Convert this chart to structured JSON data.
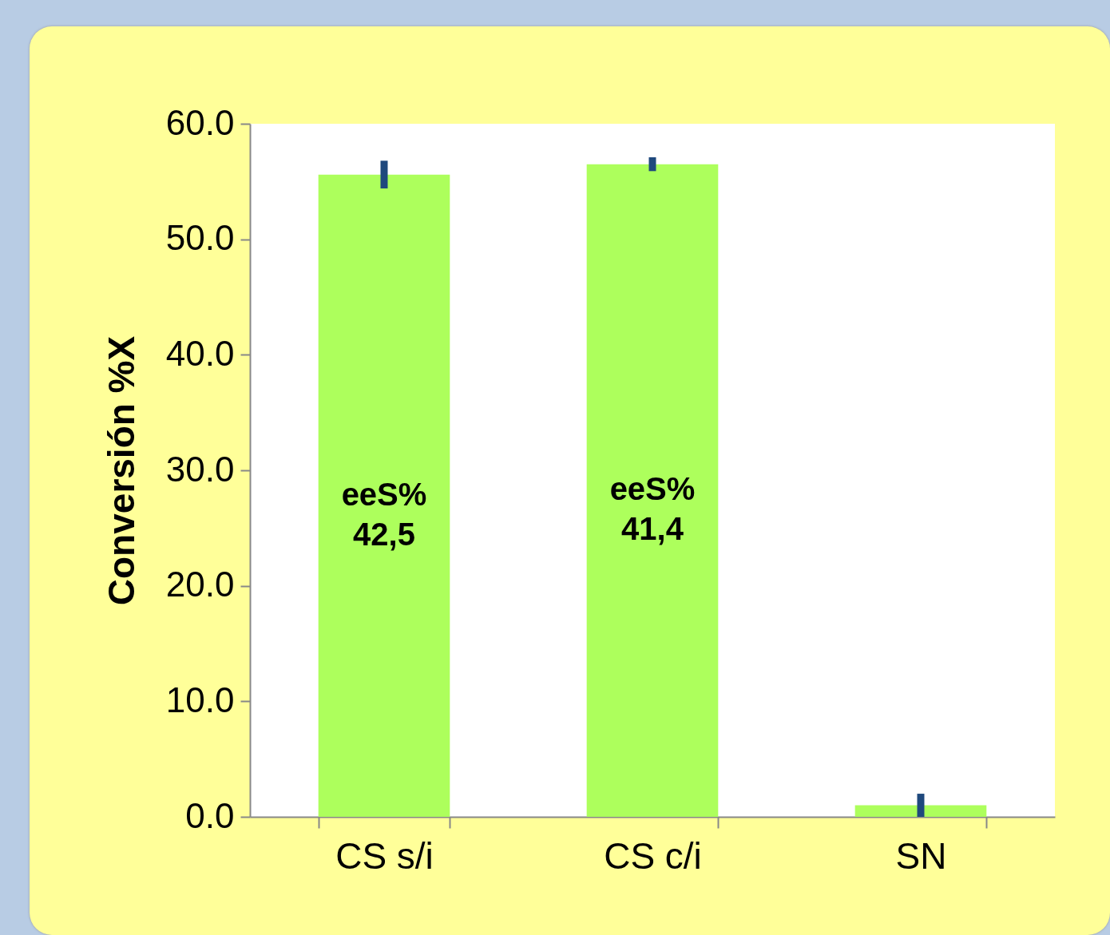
{
  "chart_data": {
    "type": "bar",
    "ylabel": "Conversión %X",
    "categories": [
      "CS s/i",
      "CS c/i",
      "SN"
    ],
    "values": [
      55.6,
      56.5,
      1.0
    ],
    "color": "#adff5c",
    "errors": [
      1.2,
      0.6,
      1.0
    ],
    "ylim": [
      0,
      60
    ],
    "yticks": [
      {
        "value": 0,
        "label": "0.0"
      },
      {
        "value": 10,
        "label": "10.0"
      },
      {
        "value": 20,
        "label": "20.0"
      },
      {
        "value": 30,
        "label": "30.0"
      },
      {
        "value": 40,
        "label": "40.0"
      },
      {
        "value": 50,
        "label": "50.0"
      },
      {
        "value": 60,
        "label": "60.0"
      }
    ],
    "annotations": [
      "eeS%\n42,5",
      "eeS%\n41,4"
    ],
    "grid": false
  }
}
